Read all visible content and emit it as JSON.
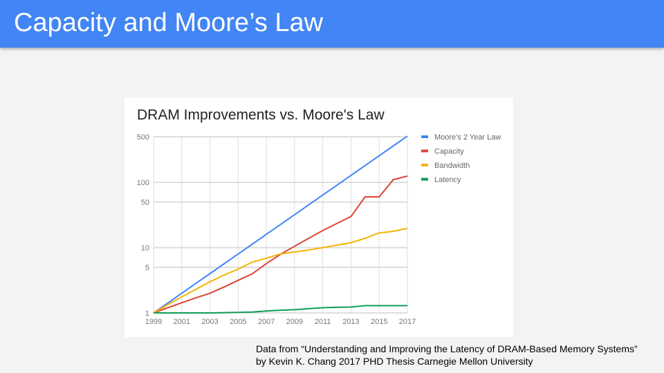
{
  "slide": {
    "title": "Capacity and Moore’s Law",
    "caption_line1": "Data from “Understanding and Improving the Latency of DRAM-Based Memory Systems”",
    "caption_line2": "by Kevin K. Chang 2017 PHD Thesis Carnegie Mellon University",
    "header_color": "#4285f4"
  },
  "chart_data": {
    "type": "line",
    "title": "DRAM Improvements vs. Moore's Law",
    "xlabel": "",
    "ylabel": "",
    "y_scale": "log",
    "xlim": [
      1999,
      2017
    ],
    "ylim": [
      1,
      500
    ],
    "x_ticks": [
      "1999",
      "2001",
      "2003",
      "2005",
      "2007",
      "2009",
      "2011",
      "2013",
      "2015",
      "2017"
    ],
    "y_ticks": [
      "1",
      "5",
      "10",
      "50",
      "100",
      "500"
    ],
    "grid": true,
    "legend_position": "right",
    "x": [
      1999,
      2000,
      2001,
      2002,
      2003,
      2004,
      2005,
      2006,
      2007,
      2008,
      2009,
      2010,
      2011,
      2012,
      2013,
      2014,
      2015,
      2016,
      2017
    ],
    "series": [
      {
        "name": "Moore's 2 Year Law",
        "color": "#4285f4",
        "values": [
          1,
          1.41,
          2,
          2.83,
          4,
          5.66,
          8,
          11.3,
          16,
          22.6,
          32,
          45.3,
          64,
          90.5,
          128,
          181,
          256,
          362,
          512
        ]
      },
      {
        "name": "Capacity",
        "color": "#db4437",
        "values": [
          1,
          1.2,
          1.43,
          1.7,
          2,
          2.5,
          3.16,
          3.97,
          5.7,
          7.9,
          10.5,
          13.9,
          18.3,
          23.5,
          30,
          60,
          60,
          110,
          125
        ]
      },
      {
        "name": "Bandwidth",
        "color": "#f4b400",
        "values": [
          1,
          1.33,
          1.76,
          2.3,
          3,
          3.8,
          4.7,
          6,
          6.9,
          8,
          8.6,
          9.2,
          10,
          10.9,
          11.9,
          13.9,
          16.8,
          17.8,
          19.8
        ]
      },
      {
        "name": "Latency",
        "color": "#0f9d58",
        "values": [
          1,
          1,
          1,
          1,
          1,
          1.01,
          1.02,
          1.03,
          1.07,
          1.1,
          1.12,
          1.16,
          1.2,
          1.22,
          1.23,
          1.29,
          1.29,
          1.29,
          1.29
        ]
      }
    ]
  }
}
